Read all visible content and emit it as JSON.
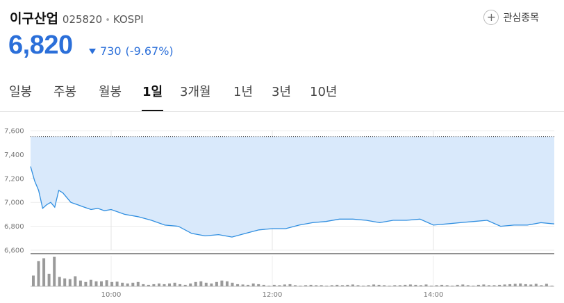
{
  "stock": {
    "name": "이구산업",
    "code": "025820",
    "market": "KOSPI",
    "price": "6,820",
    "change": "730",
    "change_pct": "(-9.67%)",
    "favorite_label": "관심종목",
    "down_color": "#2b6fd9"
  },
  "tabs": [
    {
      "label": "일봉",
      "active": false
    },
    {
      "label": "주봉",
      "active": false
    },
    {
      "label": "월봉",
      "active": false
    },
    {
      "label": "1일",
      "active": true
    },
    {
      "label": "3개월",
      "active": false
    },
    {
      "label": "1년",
      "active": false
    },
    {
      "label": "3년",
      "active": false
    },
    {
      "label": "10년",
      "active": false
    }
  ],
  "chart_data": {
    "type": "area",
    "ylim": [
      6600,
      7600
    ],
    "y_ticks": [
      "7,600",
      "7,400",
      "7,200",
      "7,000",
      "6,800",
      "6,600"
    ],
    "x_ticks": [
      "10:00",
      "12:00",
      "14:00"
    ],
    "prev_close": 7550,
    "series": [
      {
        "x": [
          "09:00",
          "09:03",
          "09:06",
          "09:09",
          "09:12",
          "09:15",
          "09:18",
          "09:21",
          "09:24",
          "09:27",
          "09:30",
          "09:35",
          "09:40",
          "09:45",
          "09:50",
          "09:55",
          "10:00",
          "10:10",
          "10:20",
          "10:30",
          "10:40",
          "10:50",
          "11:00",
          "11:10",
          "11:20",
          "11:30",
          "11:40",
          "11:50",
          "12:00",
          "12:10",
          "12:20",
          "12:30",
          "12:40",
          "12:50",
          "13:00",
          "13:10",
          "13:20",
          "13:30",
          "13:40",
          "13:50",
          "14:00",
          "14:10",
          "14:20",
          "14:30",
          "14:40",
          "14:50",
          "15:00",
          "15:10",
          "15:20",
          "15:30"
        ],
        "values": [
          7300,
          7180,
          7100,
          6950,
          6980,
          7000,
          6960,
          7100,
          7080,
          7040,
          7000,
          6980,
          6960,
          6940,
          6950,
          6930,
          6940,
          6900,
          6880,
          6850,
          6810,
          6800,
          6740,
          6720,
          6730,
          6710,
          6740,
          6770,
          6780,
          6780,
          6810,
          6830,
          6840,
          6860,
          6860,
          6850,
          6830,
          6850,
          6850,
          6860,
          6810,
          6820,
          6830,
          6840,
          6850,
          6800,
          6810,
          6810,
          6830,
          6820
        ]
      }
    ],
    "volume": [
      30,
      70,
      78,
      35,
      82,
      26,
      22,
      20,
      28,
      16,
      12,
      18,
      14,
      14,
      17,
      12,
      13,
      10,
      8,
      10,
      12,
      6,
      4,
      6,
      8,
      6,
      8,
      10,
      6,
      4,
      8,
      12,
      14,
      10,
      8,
      12,
      16,
      14,
      10,
      6,
      5,
      4,
      8,
      6,
      4,
      2,
      4,
      3,
      5,
      6,
      3,
      2,
      3,
      4,
      3,
      3,
      2,
      3,
      4,
      3,
      4,
      5,
      3,
      2,
      3,
      5,
      4,
      3,
      2,
      3,
      3,
      4,
      5,
      4,
      3,
      5,
      2,
      3,
      4,
      3,
      2,
      4,
      5,
      3,
      2,
      4,
      5,
      3,
      3,
      4,
      5,
      6,
      7,
      8,
      6,
      5,
      7,
      3,
      7,
      2
    ]
  }
}
